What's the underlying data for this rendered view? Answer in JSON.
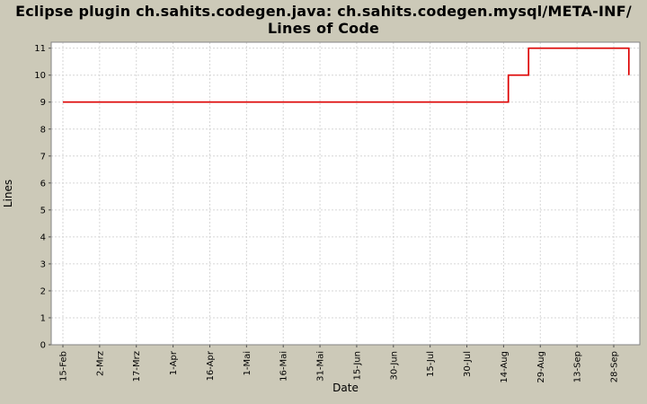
{
  "title": {
    "line1": "Eclipse plugin ch.sahits.codegen.java: ch.sahits.codegen.mysql/META-INF/",
    "line2": "Lines of Code"
  },
  "chart_data": {
    "type": "line",
    "title": "Eclipse plugin ch.sahits.codegen.java: ch.sahits.codegen.mysql/META-INF/ Lines of Code",
    "xlabel": "Date",
    "ylabel": "Lines",
    "ylim": [
      0,
      11
    ],
    "y_ticks": [
      0,
      1,
      2,
      3,
      4,
      5,
      6,
      7,
      8,
      9,
      10,
      11
    ],
    "x_tick_labels": [
      "15-Feb",
      "2-Mrz",
      "17-Mrz",
      "1-Apr",
      "16-Apr",
      "1-Mai",
      "16-Mai",
      "31-Mai",
      "15-Jun",
      "30-Jun",
      "15-Jul",
      "30-Jul",
      "14-Aug",
      "29-Aug",
      "13-Sep",
      "28-Sep"
    ],
    "x_unit": "tick index; ticks are 15 days apart starting 15-Feb",
    "grid": {
      "style": "dashed",
      "color": "#d6d6d6"
    },
    "legend": "none",
    "series": [
      {
        "name": "Lines of Code",
        "color": "#dd0000",
        "points": [
          [
            0,
            9
          ],
          [
            12.13,
            9
          ],
          [
            12.13,
            10
          ],
          [
            12.68,
            10
          ],
          [
            12.68,
            11
          ],
          [
            15.41,
            11
          ],
          [
            15.41,
            10
          ]
        ],
        "description": "step line: 9 lines from 15-Feb, rises to 10 just after 14-Aug, to 11 before 29-Aug, drops back to 10 just after 28-Sep"
      }
    ]
  },
  "colors": {
    "background": "#ccc9b8",
    "plot_background": "#ffffff",
    "plot_border": "#848484",
    "grid": "#d6d6d6",
    "tick": "#4d4d4d",
    "text": "#000000",
    "series": "#dd0000"
  }
}
